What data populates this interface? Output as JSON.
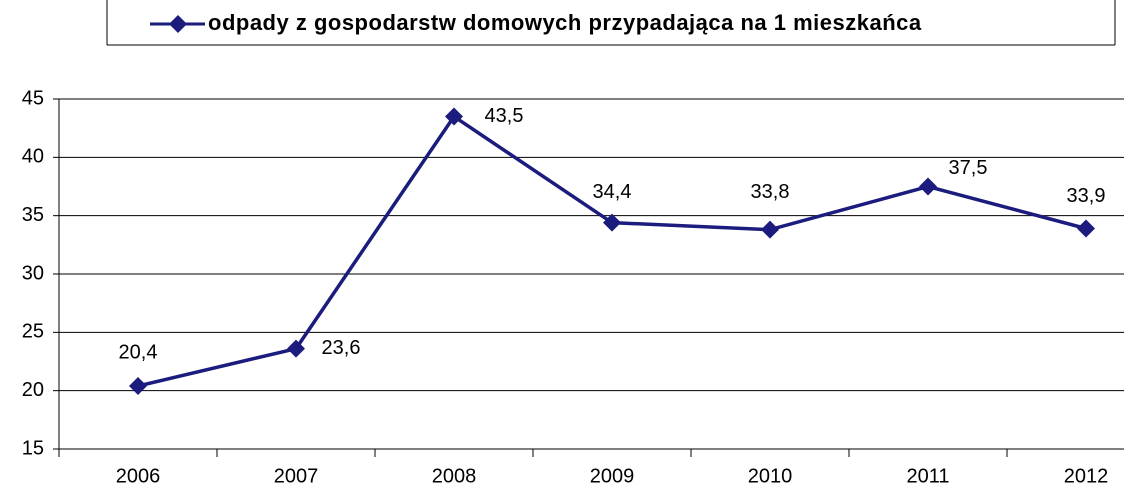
{
  "chart_data": {
    "type": "line",
    "categories": [
      "2006",
      "2007",
      "2008",
      "2009",
      "2010",
      "2011",
      "2012"
    ],
    "series": [
      {
        "name": "odpady z gospodarstw domowych przypadająca na 1 mieszkańca",
        "color": "#1c1c7e",
        "values": [
          20.4,
          23.6,
          43.5,
          34.4,
          33.8,
          37.5,
          33.9
        ],
        "value_labels": [
          "20,4",
          "23,6",
          "43,5",
          "34,4",
          "33,8",
          "37,5",
          "33,9"
        ]
      }
    ],
    "ylim": [
      15,
      45
    ],
    "yticks": [
      15,
      20,
      25,
      30,
      35,
      40,
      45
    ],
    "grid": true,
    "legend": "top"
  }
}
